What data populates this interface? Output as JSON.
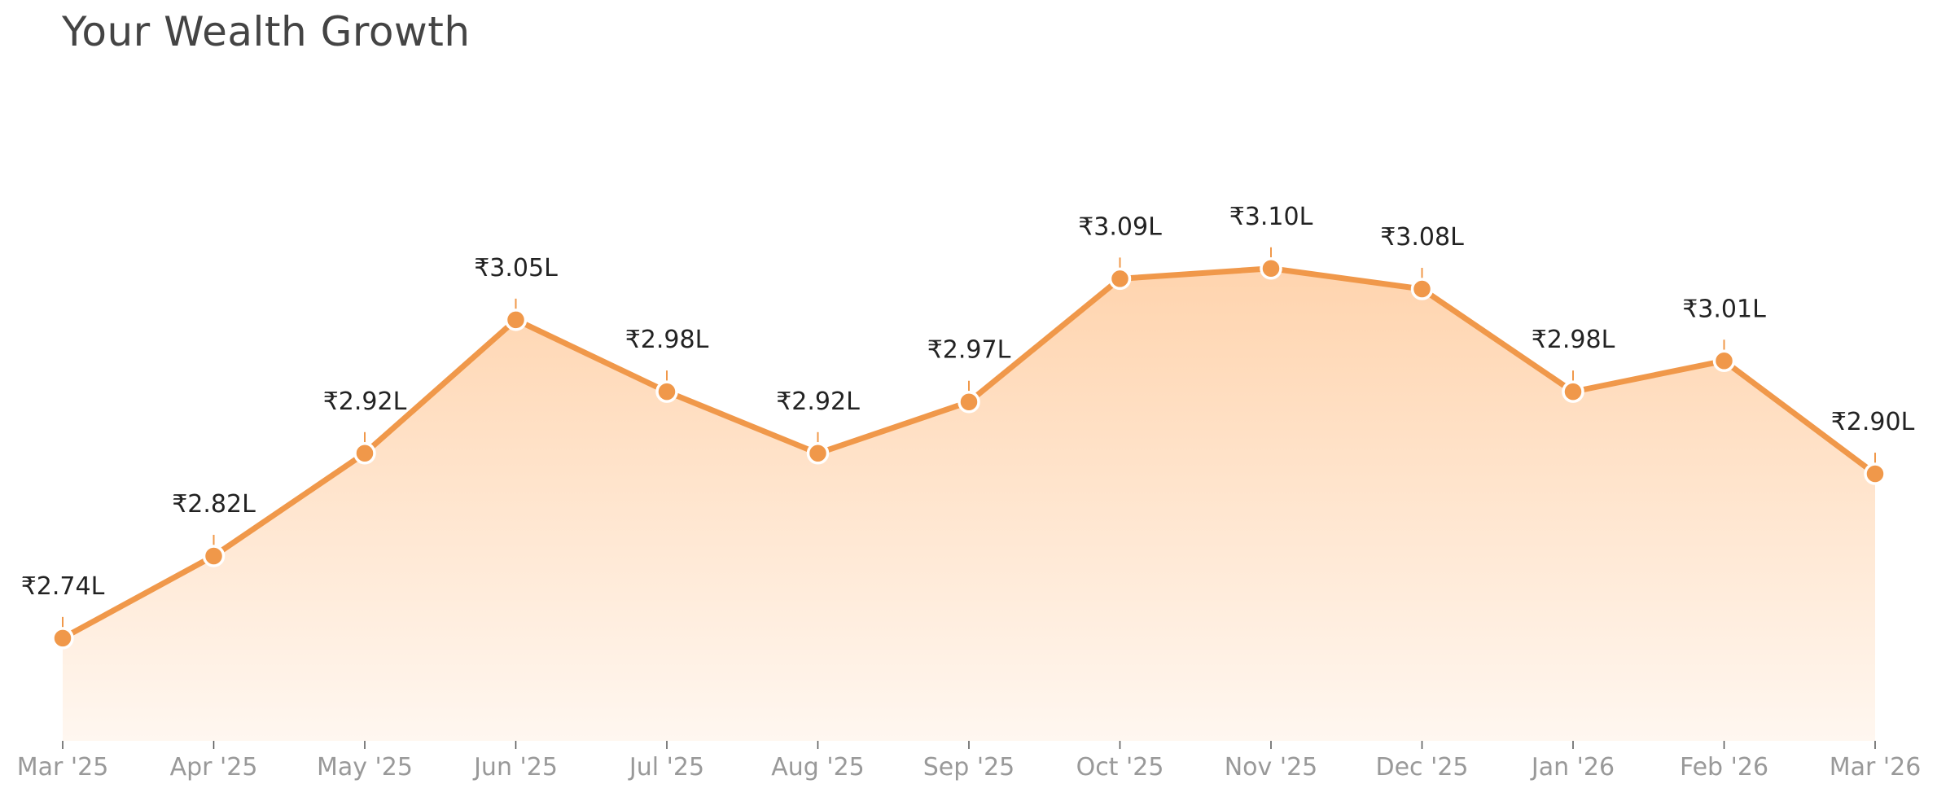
{
  "chart_data": {
    "type": "area",
    "title": "Your Wealth Growth",
    "xlabel": "",
    "ylabel": "",
    "categories": [
      "Mar '25",
      "Apr '25",
      "May '25",
      "Jun '25",
      "Jul '25",
      "Aug '25",
      "Sep '25",
      "Oct '25",
      "Nov '25",
      "Dec '25",
      "Jan '26",
      "Feb '26",
      "Mar '26"
    ],
    "series": [
      {
        "values": [
          2.74,
          2.82,
          2.92,
          3.05,
          2.98,
          2.92,
          2.97,
          3.09,
          3.1,
          3.08,
          2.98,
          3.01,
          2.9
        ],
        "labels": [
          "₹2.74L",
          "₹2.82L",
          "₹2.92L",
          "₹3.05L",
          "₹2.98L",
          "₹2.92L",
          "₹2.97L",
          "₹3.09L",
          "₹3.10L",
          "₹3.08L",
          "₹2.98L",
          "₹3.01L",
          "₹2.90L"
        ]
      }
    ],
    "unit": "₹ Lakh",
    "ylim": [
      2.64,
      3.21
    ],
    "grid": false,
    "legend": "none",
    "colors": {
      "line": "#F0984A",
      "fill_top": "#FFD4AE",
      "fill_bottom": "#FFF7F0",
      "marker_edge": "#ffffff",
      "tick_text": "#999999",
      "label_text": "#222222",
      "title_text": "#444444"
    }
  }
}
